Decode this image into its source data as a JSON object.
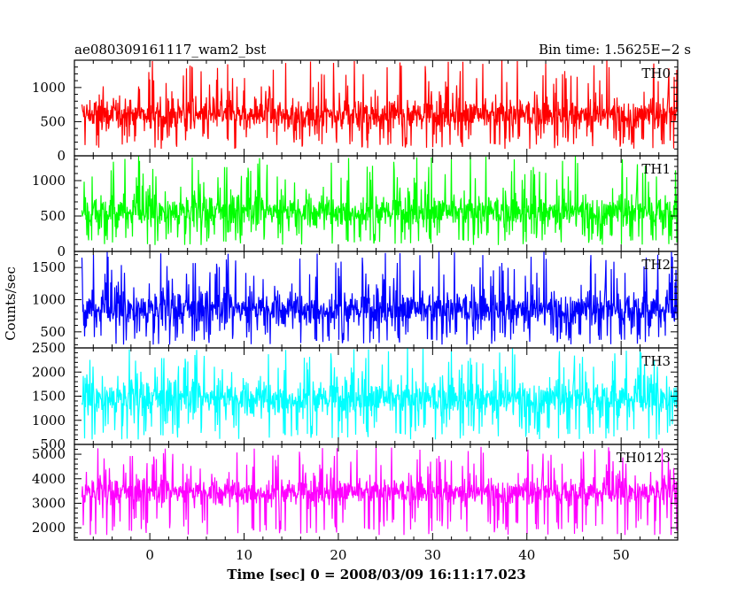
{
  "header": {
    "title": "ae080309161117_wam2_bst",
    "bin_time": "Bin time: 1.5625E−2 s"
  },
  "chart_data": {
    "type": "line",
    "title": "ae080309161117_wam2_bst",
    "ylabel": "Counts/sec",
    "xlabel": "Time [sec] 0 = 2008/03/09 16:11:17.023",
    "xlim": [
      -8,
      56
    ],
    "x_ticks": [
      0,
      10,
      20,
      30,
      40,
      50
    ],
    "x_tick_labels": [
      "0",
      "10",
      "20",
      "30",
      "40",
      "50"
    ],
    "data_x_range": [
      -7.2,
      56.0
    ],
    "panels": [
      {
        "name": "TH0",
        "color": "#ff0000",
        "ylim": [
          0,
          1400
        ],
        "y_ticks": [
          0,
          500,
          1000
        ],
        "y_tick_labels": [
          "0",
          "500",
          "1000"
        ],
        "baseline": 600,
        "spread": 160,
        "low_floor": 100,
        "peak_max": 1400
      },
      {
        "name": "TH1",
        "color": "#00ff00",
        "ylim": [
          0,
          1350
        ],
        "y_ticks": [
          0,
          500,
          1000
        ],
        "y_tick_labels": [
          "0",
          "500",
          "1000"
        ],
        "baseline": 560,
        "spread": 160,
        "low_floor": 90,
        "peak_max": 1350
      },
      {
        "name": "TH2",
        "color": "#0000ff",
        "ylim": [
          250,
          1750
        ],
        "y_ticks": [
          500,
          1000,
          1500
        ],
        "y_tick_labels": [
          "500",
          "1000",
          "1500"
        ],
        "baseline": 850,
        "spread": 190,
        "low_floor": 300,
        "peak_max": 1750
      },
      {
        "name": "TH3",
        "color": "#00ffff",
        "ylim": [
          500,
          2500
        ],
        "y_ticks": [
          500,
          1000,
          1500,
          2000,
          2500
        ],
        "y_tick_labels": [
          "500",
          "1000",
          "1500",
          "2000",
          "2500"
        ],
        "baseline": 1450,
        "spread": 260,
        "low_floor": 600,
        "peak_max": 2500
      },
      {
        "name": "TH0123",
        "color": "#ff00ff",
        "ylim": [
          1500,
          5400
        ],
        "y_ticks": [
          2000,
          3000,
          4000,
          5000
        ],
        "y_tick_labels": [
          "2000",
          "3000",
          "4000",
          "5000"
        ],
        "baseline": 3450,
        "spread": 380,
        "low_floor": 1700,
        "peak_max": 5300
      }
    ]
  }
}
